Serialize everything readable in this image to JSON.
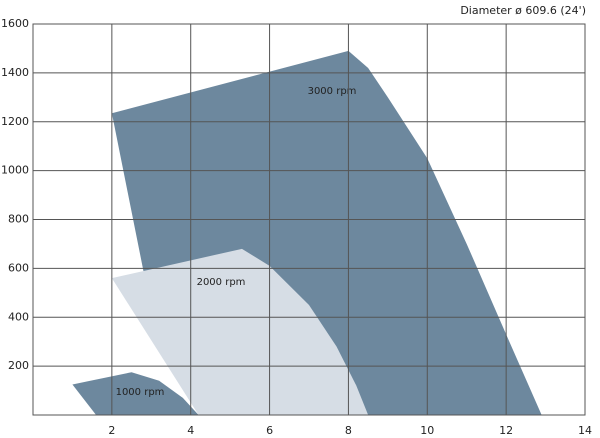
{
  "chart_data": {
    "type": "area",
    "title": "Diameter ø 609.6 (24')",
    "xlim": [
      0,
      14
    ],
    "xticks": [
      2,
      4,
      6,
      8,
      10,
      12,
      14
    ],
    "ylim": [
      0,
      1600
    ],
    "yticks": [
      200,
      400,
      600,
      800,
      1000,
      1200,
      1400,
      1600
    ],
    "grid": true,
    "series": [
      {
        "name": "3000 rpm",
        "color": "#6d889e",
        "x": [
          2,
          8,
          8.5,
          9,
          10,
          11,
          12,
          12.9,
          4.5,
          2.8
        ],
        "y": [
          1235,
          1490,
          1420,
          1300,
          1050,
          700,
          330,
          0,
          0,
          590
        ]
      },
      {
        "name": "2000 rpm",
        "color": "#d6dde5",
        "x": [
          2,
          5.3,
          6,
          7,
          7.7,
          8.2,
          8.5,
          4.2
        ],
        "y": [
          560,
          680,
          610,
          450,
          280,
          120,
          0,
          0
        ]
      },
      {
        "name": "1000 rpm",
        "color": "#6d889e",
        "x": [
          1,
          2.5,
          3.2,
          3.8,
          4.2,
          1.6
        ],
        "y": [
          125,
          175,
          140,
          70,
          0,
          0
        ]
      }
    ]
  }
}
